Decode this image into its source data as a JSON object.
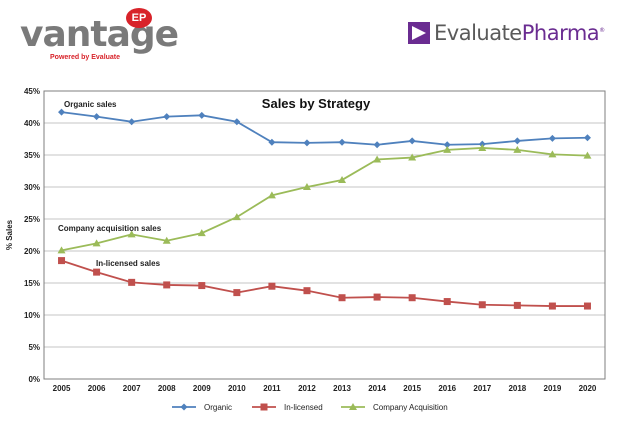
{
  "logos": {
    "vantage": {
      "word": "vantage",
      "badge": "EP",
      "tagline": "Powered by Evaluate"
    },
    "evaluate": {
      "word_a": "Evaluate",
      "word_b": "Pharma",
      "reg": "®"
    }
  },
  "chart_data": {
    "type": "line",
    "title": "Sales by Strategy",
    "xlabel": "",
    "ylabel": "% Sales",
    "x": [
      "2005",
      "2006",
      "2007",
      "2008",
      "2009",
      "2010",
      "2011",
      "2012",
      "2013",
      "2014",
      "2015",
      "2016",
      "2017",
      "2018",
      "2019",
      "2020"
    ],
    "ylim": [
      0,
      45
    ],
    "yticks": [
      "0%",
      "5%",
      "10%",
      "15%",
      "20%",
      "25%",
      "30%",
      "35%",
      "40%",
      "45%"
    ],
    "grid": true,
    "legend_position": "bottom",
    "series": [
      {
        "name": "Organic",
        "color": "#4f81bd",
        "marker": "diamond",
        "values": [
          41.7,
          41.0,
          40.2,
          41.0,
          41.2,
          40.2,
          37.0,
          36.9,
          37.0,
          36.6,
          37.2,
          36.6,
          36.7,
          37.2,
          37.6,
          37.7
        ]
      },
      {
        "name": "In-licensed",
        "color": "#c0504d",
        "marker": "square",
        "values": [
          18.5,
          16.7,
          15.1,
          14.7,
          14.6,
          13.5,
          14.5,
          13.8,
          12.7,
          12.8,
          12.7,
          12.1,
          11.6,
          11.5,
          11.4,
          11.4
        ]
      },
      {
        "name": "Company Acquisition",
        "color": "#9bbb59",
        "marker": "triangle",
        "values": [
          20.1,
          21.2,
          22.6,
          21.6,
          22.8,
          25.3,
          28.7,
          30.0,
          31.1,
          34.3,
          34.6,
          35.8,
          36.1,
          35.8,
          35.1,
          34.9
        ]
      }
    ],
    "annotations": [
      "Organic sales",
      "Company acquisition sales",
      "In-licensed sales"
    ]
  }
}
